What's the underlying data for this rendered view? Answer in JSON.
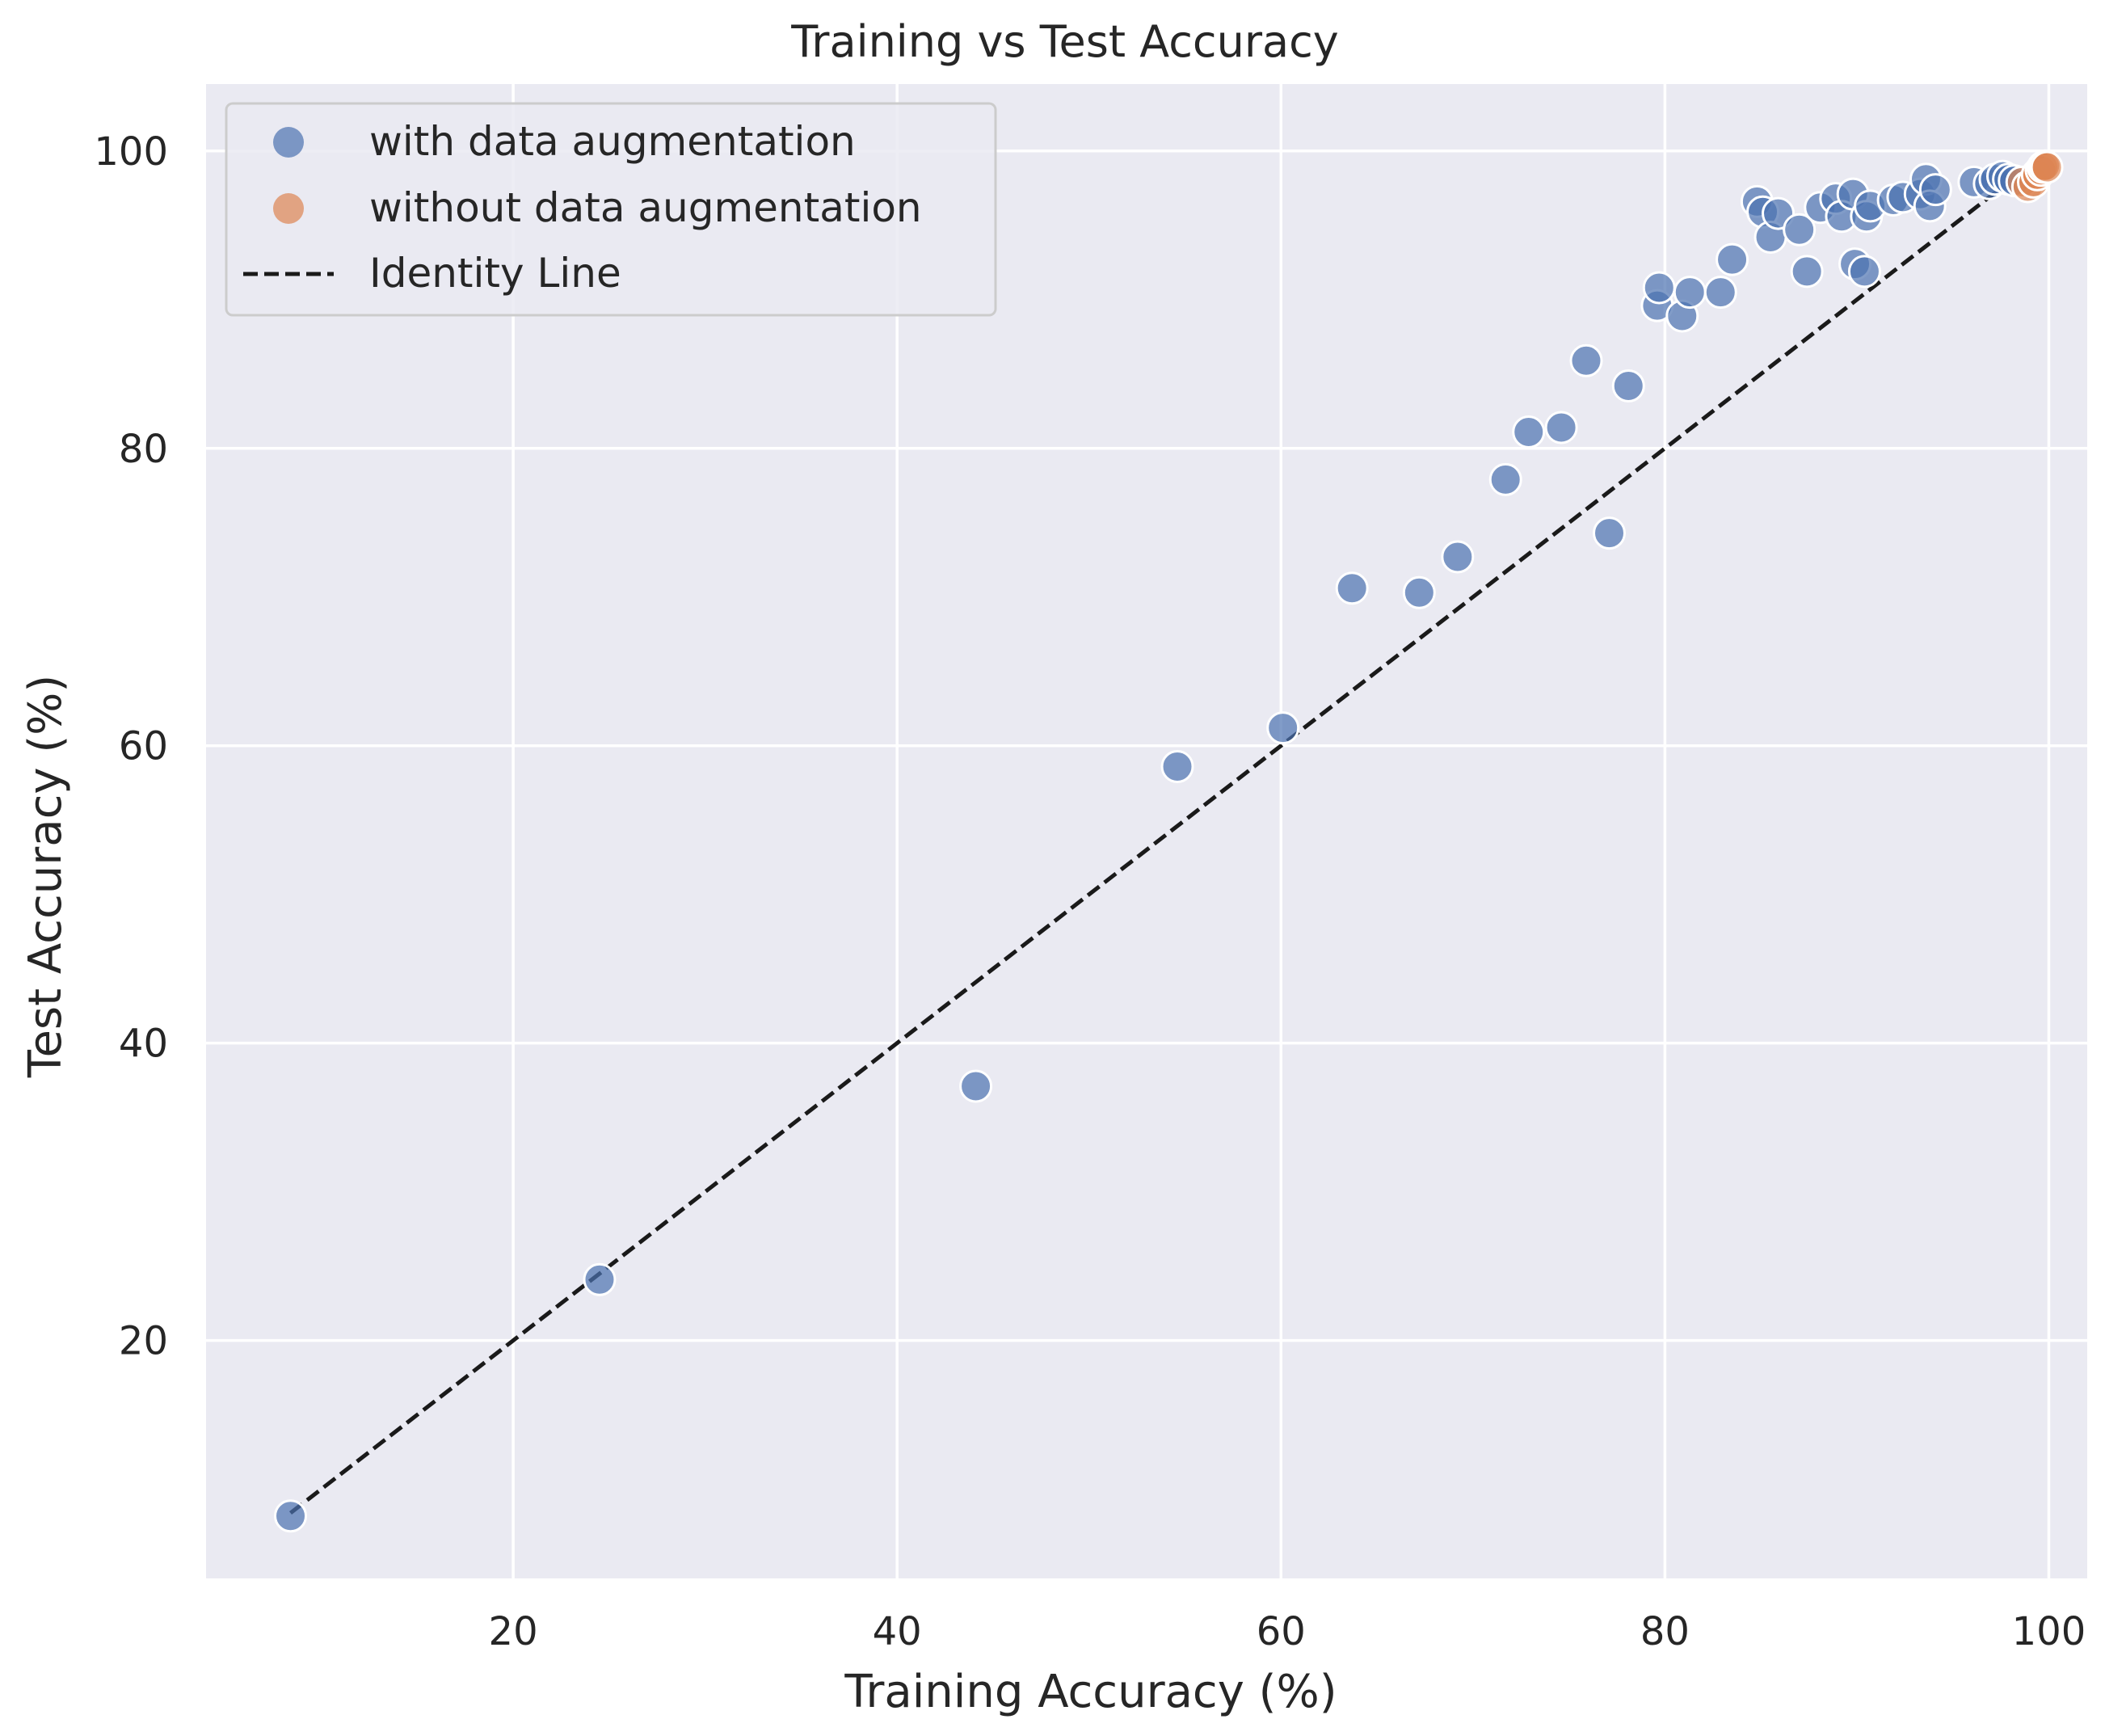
{
  "chart_data": {
    "type": "scatter",
    "title": "Training vs Test Accuracy",
    "xlabel": "Training Accuracy (%)",
    "ylabel": "Test Accuracy (%)",
    "xlim": [
      4,
      102
    ],
    "ylim": [
      4,
      104.5
    ],
    "xticks": [
      20,
      40,
      60,
      80,
      100
    ],
    "yticks": [
      20,
      40,
      60,
      80,
      100
    ],
    "grid": true,
    "legend_position": "top-left",
    "colors": {
      "background": "#eaeaf2",
      "grid": "#ffffff",
      "with_aug": "#4c72b0",
      "without_aug": "#dd8452",
      "identity": "#1a1a1a"
    },
    "series": [
      {
        "name": "with data augmentation",
        "points": [
          [
            8.4,
            8.2
          ],
          [
            24.5,
            24.1
          ],
          [
            44.1,
            37.1
          ],
          [
            54.6,
            58.6
          ],
          [
            60.1,
            61.2
          ],
          [
            63.7,
            70.6
          ],
          [
            67.2,
            70.3
          ],
          [
            69.2,
            72.7
          ],
          [
            71.7,
            77.9
          ],
          [
            72.9,
            81.1
          ],
          [
            74.6,
            81.4
          ],
          [
            75.9,
            85.9
          ],
          [
            77.1,
            74.3
          ],
          [
            78.1,
            84.2
          ],
          [
            79.6,
            89.6
          ],
          [
            79.7,
            90.8
          ],
          [
            80.9,
            88.9
          ],
          [
            81.3,
            90.5
          ],
          [
            82.9,
            90.5
          ],
          [
            83.5,
            92.7
          ],
          [
            84.8,
            96.6
          ],
          [
            85.1,
            95.9
          ],
          [
            85.5,
            94.2
          ],
          [
            85.9,
            95.8
          ],
          [
            87.0,
            94.7
          ],
          [
            87.4,
            91.9
          ],
          [
            88.1,
            96.2
          ],
          [
            88.9,
            96.8
          ],
          [
            89.2,
            95.6
          ],
          [
            89.8,
            97.1
          ],
          [
            89.9,
            92.4
          ],
          [
            90.4,
            91.9
          ],
          [
            90.5,
            95.6
          ],
          [
            90.7,
            96.3
          ],
          [
            91.9,
            96.7
          ],
          [
            92.4,
            96.9
          ],
          [
            93.3,
            97.1
          ],
          [
            93.6,
            98.1
          ],
          [
            93.8,
            96.3
          ],
          [
            94.1,
            97.4
          ],
          [
            96.1,
            97.9
          ],
          [
            96.9,
            97.8
          ],
          [
            97.2,
            98.1
          ],
          [
            97.6,
            98.3
          ],
          [
            97.9,
            98.1
          ],
          [
            98.2,
            98.0
          ]
        ]
      },
      {
        "name": "without data augmentation",
        "points": [
          [
            98.6,
            97.9
          ],
          [
            98.9,
            97.6
          ],
          [
            99.2,
            97.9
          ],
          [
            99.4,
            98.4
          ],
          [
            99.6,
            98.7
          ],
          [
            99.7,
            98.9
          ],
          [
            99.8,
            99.0
          ],
          [
            99.9,
            98.9
          ]
        ]
      }
    ],
    "identity_line": {
      "name": "Identity Line",
      "from": 8.4,
      "to": 100
    }
  }
}
